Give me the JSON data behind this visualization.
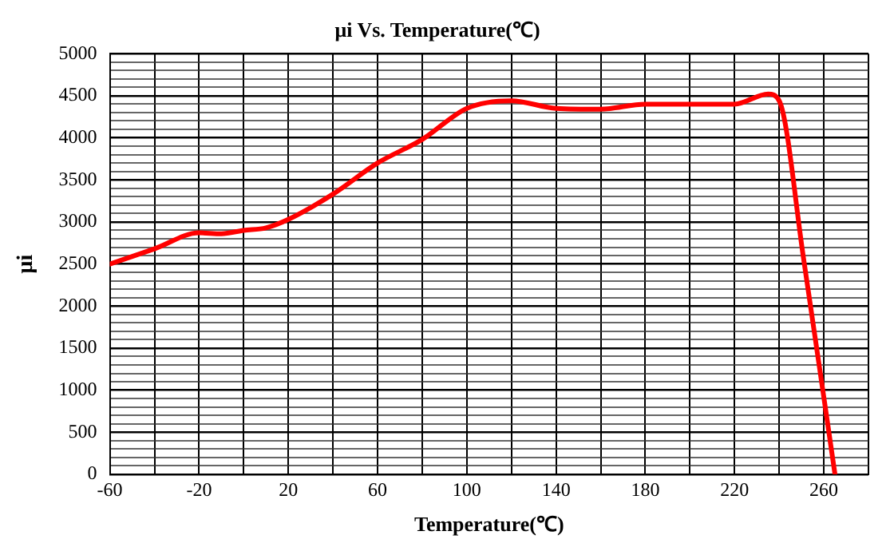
{
  "chart_data": {
    "type": "line",
    "title": "μi Vs. Temperature(℃)",
    "xlabel": "Temperature(℃)",
    "ylabel": "μi",
    "xlim": [
      -60,
      280
    ],
    "xticks": [
      -60,
      {
        "value": -40,
        "label": null
      },
      -20,
      {
        "value": 0,
        "label": null
      },
      20,
      {
        "value": 40,
        "label": null
      },
      60,
      {
        "value": 80,
        "label": null
      },
      100,
      {
        "value": 120,
        "label": null
      },
      140,
      {
        "value": 160,
        "label": null
      },
      180,
      {
        "value": 200,
        "label": null
      },
      220,
      {
        "value": 240,
        "label": null
      },
      260,
      {
        "value": 280,
        "label": null
      }
    ],
    "ylim": [
      0,
      5000
    ],
    "yticks": [
      0,
      {
        "value": 100,
        "label": null
      },
      {
        "value": 200,
        "label": null
      },
      {
        "value": 300,
        "label": null
      },
      {
        "value": 400,
        "label": null
      },
      500,
      {
        "value": 600,
        "label": null
      },
      {
        "value": 700,
        "label": null
      },
      {
        "value": 800,
        "label": null
      },
      {
        "value": 900,
        "label": null
      },
      1000,
      {
        "value": 1100,
        "label": null
      },
      {
        "value": 1200,
        "label": null
      },
      {
        "value": 1300,
        "label": null
      },
      {
        "value": 1400,
        "label": null
      },
      1500,
      {
        "value": 1600,
        "label": null
      },
      {
        "value": 1700,
        "label": null
      },
      {
        "value": 1800,
        "label": null
      },
      {
        "value": 1900,
        "label": null
      },
      2000,
      {
        "value": 2100,
        "label": null
      },
      {
        "value": 2200,
        "label": null
      },
      {
        "value": 2300,
        "label": null
      },
      {
        "value": 2400,
        "label": null
      },
      2500,
      {
        "value": 2600,
        "label": null
      },
      {
        "value": 2700,
        "label": null
      },
      {
        "value": 2800,
        "label": null
      },
      {
        "value": 2900,
        "label": null
      },
      3000,
      {
        "value": 3100,
        "label": null
      },
      {
        "value": 3200,
        "label": null
      },
      {
        "value": 3300,
        "label": null
      },
      {
        "value": 3400,
        "label": null
      },
      3500,
      {
        "value": 3600,
        "label": null
      },
      {
        "value": 3700,
        "label": null
      },
      {
        "value": 3800,
        "label": null
      },
      {
        "value": 3900,
        "label": null
      },
      4000,
      {
        "value": 4100,
        "label": null
      },
      {
        "value": 4200,
        "label": null
      },
      {
        "value": 4300,
        "label": null
      },
      {
        "value": 4400,
        "label": null
      },
      4500,
      {
        "value": 4600,
        "label": null
      },
      {
        "value": 4700,
        "label": null
      },
      {
        "value": 4800,
        "label": null
      },
      {
        "value": 4900,
        "label": null
      },
      5000
    ],
    "grid": true,
    "legend": false,
    "marker": "none",
    "line_style": "solid",
    "series": [
      {
        "color": "#ff0000",
        "x": [
          -60,
          -40,
          -20,
          -10,
          0,
          10,
          20,
          40,
          60,
          80,
          100,
          120,
          140,
          160,
          180,
          200,
          220,
          235,
          240,
          251,
          265
        ],
        "values": [
          2500,
          2680,
          2870,
          2860,
          2900,
          2930,
          3030,
          3330,
          3700,
          3980,
          4350,
          4440,
          4350,
          4340,
          4400,
          4400,
          4400,
          4520,
          4440,
          2550,
          0
        ]
      }
    ]
  }
}
